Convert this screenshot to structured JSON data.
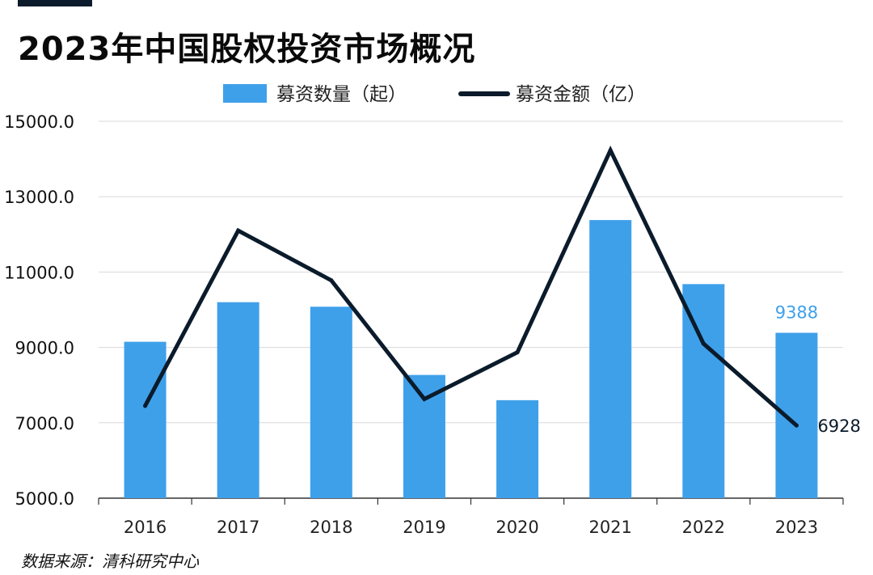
{
  "title": "2023年中国股权投资市场概况",
  "source": "数据来源：清科研究中心",
  "colors": {
    "bar": "#3fa0ea",
    "line": "#0b1b2b",
    "bar_label": "#3fa0ea",
    "line_label": "#0b1b2b",
    "grid": "#d9d9d9",
    "axis": "#333333"
  },
  "chart_data": {
    "type": "bar",
    "title": "2023年中国股权投资市场概况",
    "categories": [
      "2016",
      "2017",
      "2018",
      "2019",
      "2020",
      "2021",
      "2022",
      "2023"
    ],
    "ylim": [
      5000,
      15000
    ],
    "yticks": [
      "15000.0",
      "13000.0",
      "11000.0",
      "9000.0",
      "7000.0",
      "5000.0"
    ],
    "ytick_values": [
      15000,
      13000,
      11000,
      9000,
      7000,
      5000
    ],
    "grid": true,
    "legend_position": "top-center",
    "series": [
      {
        "name": "募资数量（起）",
        "type": "bar",
        "values": [
          9150,
          10200,
          10080,
          8270,
          7600,
          12380,
          10680,
          9388
        ],
        "data_labels": [
          null,
          null,
          null,
          null,
          null,
          null,
          null,
          "9388"
        ]
      },
      {
        "name": "募资金额（亿）",
        "type": "line",
        "values": [
          7450,
          12100,
          10780,
          7630,
          8870,
          14230,
          9100,
          6928
        ],
        "data_labels": [
          null,
          null,
          null,
          null,
          null,
          null,
          null,
          "6928"
        ]
      }
    ]
  }
}
